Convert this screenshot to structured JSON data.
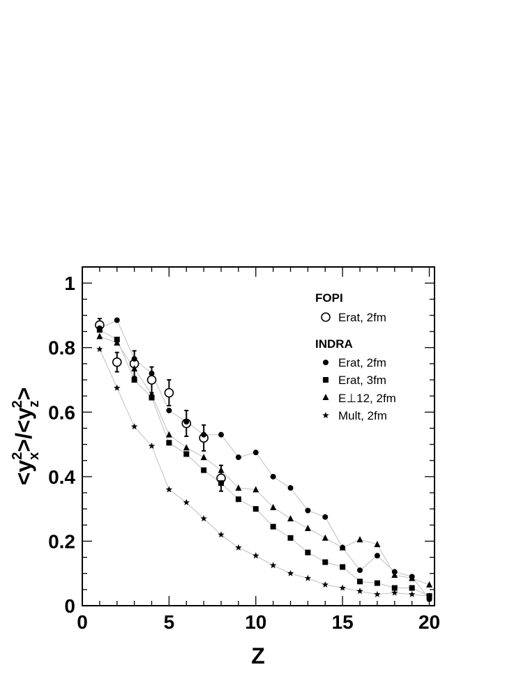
{
  "chart_data": {
    "type": "scatter",
    "xlabel": "Z",
    "ylabel": "<y_x^2>/<y_z^2>",
    "xlim": [
      0,
      20.3
    ],
    "ylim": [
      0,
      1.05
    ],
    "x_ticks": [
      "0",
      "5",
      "10",
      "15",
      "20"
    ],
    "y_ticks": [
      "0",
      "0.2",
      "0.4",
      "0.6",
      "0.8",
      "1"
    ],
    "grid": false,
    "legend_position": "top-right",
    "legend_groups": [
      {
        "title": "FOPI",
        "entries": [
          "Erat, 2fm"
        ]
      },
      {
        "title": "INDRA",
        "entries": [
          "Erat, 2fm",
          "Erat, 3fm",
          "E⊥12, 2fm",
          "Mult, 2fm"
        ]
      }
    ],
    "series": [
      {
        "name": "FOPI Erat, 2fm",
        "marker": "open-circle",
        "connected": false,
        "x": [
          1,
          2,
          3,
          4,
          5,
          6,
          7,
          8
        ],
        "y": [
          0.87,
          0.755,
          0.75,
          0.7,
          0.66,
          0.565,
          0.52,
          0.395
        ],
        "yerr": [
          0.02,
          0.03,
          0.04,
          0.04,
          0.04,
          0.04,
          0.04,
          0.04
        ]
      },
      {
        "name": "INDRA Erat, 2fm",
        "marker": "circle",
        "connected": true,
        "x": [
          1,
          2,
          3,
          4,
          5,
          6,
          7,
          8,
          9,
          10,
          11,
          12,
          13,
          14,
          15,
          16,
          17,
          18,
          19,
          20
        ],
        "y": [
          0.86,
          0.885,
          0.765,
          0.72,
          0.605,
          0.57,
          0.53,
          0.53,
          0.46,
          0.475,
          0.4,
          0.365,
          0.295,
          0.275,
          0.18,
          0.11,
          0.155,
          0.105,
          0.09,
          0.02
        ]
      },
      {
        "name": "INDRA Erat, 3fm",
        "marker": "square",
        "connected": true,
        "x": [
          1,
          2,
          3,
          4,
          5,
          6,
          7,
          8,
          9,
          10,
          11,
          12,
          13,
          14,
          15,
          16,
          17,
          18,
          19,
          20
        ],
        "y": [
          0.855,
          0.825,
          0.7,
          0.645,
          0.505,
          0.47,
          0.42,
          0.38,
          0.33,
          0.3,
          0.245,
          0.21,
          0.165,
          0.135,
          0.12,
          0.075,
          0.07,
          0.055,
          0.055,
          0.03
        ]
      },
      {
        "name": "INDRA E⊥12, 2fm",
        "marker": "triangle",
        "connected": true,
        "x": [
          1,
          2,
          3,
          4,
          5,
          6,
          7,
          8,
          9,
          10,
          11,
          12,
          13,
          14,
          15,
          16,
          17,
          18,
          19,
          20
        ],
        "y": [
          0.835,
          0.815,
          0.735,
          0.655,
          0.53,
          0.49,
          0.46,
          0.42,
          0.365,
          0.36,
          0.305,
          0.27,
          0.24,
          0.21,
          0.18,
          0.205,
          0.19,
          0.095,
          0.085,
          0.065
        ]
      },
      {
        "name": "INDRA Mult, 2fm",
        "marker": "star",
        "connected": true,
        "x": [
          1,
          2,
          3,
          4,
          5,
          6,
          7,
          8,
          9,
          10,
          11,
          12,
          13,
          14,
          15,
          16,
          17,
          18,
          19,
          20
        ],
        "y": [
          0.795,
          0.675,
          0.555,
          0.495,
          0.36,
          0.32,
          0.27,
          0.22,
          0.18,
          0.155,
          0.125,
          0.1,
          0.085,
          0.065,
          0.055,
          0.045,
          0.035,
          0.04,
          0.035,
          0.03
        ]
      }
    ]
  }
}
